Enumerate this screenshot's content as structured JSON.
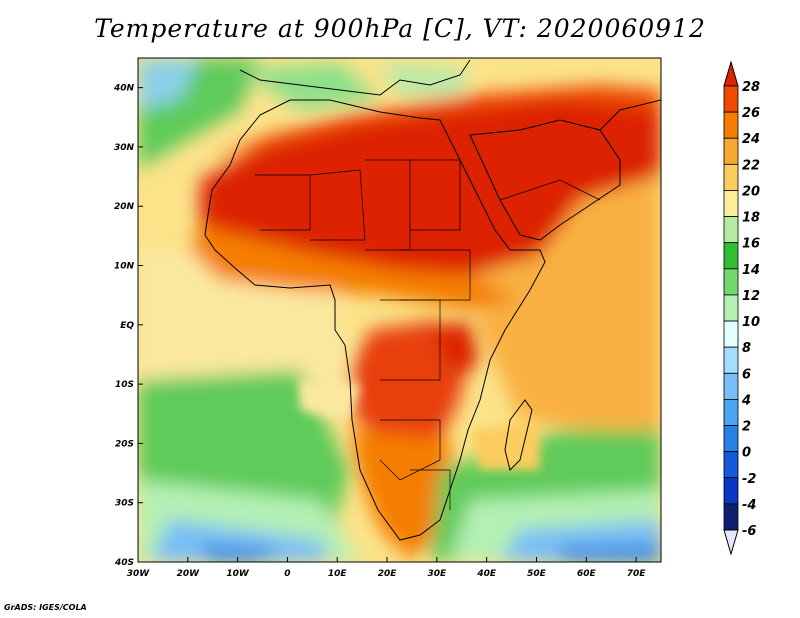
{
  "title": "Temperature at 900hPa [C], VT: 2020060912",
  "footer": "GrADS: IGES/COLA",
  "map": {
    "lon_range": [
      -30,
      75
    ],
    "lat_range": [
      -40,
      45
    ],
    "lon_ticks": [
      "30W",
      "20W",
      "10W",
      "0",
      "10E",
      "20E",
      "30E",
      "40E",
      "50E",
      "60E",
      "70E"
    ],
    "lat_ticks": [
      "40S",
      "30S",
      "20S",
      "10S",
      "EQ",
      "10N",
      "20N",
      "30N",
      "40N"
    ],
    "variable": "Temperature",
    "level": "900hPa",
    "units": "C",
    "valid_time": "2020060912"
  },
  "colorbar": {
    "labels": [
      "28",
      "26",
      "24",
      "22",
      "20",
      "18",
      "16",
      "14",
      "12",
      "10",
      "8",
      "6",
      "4",
      "2",
      "0",
      "-2",
      "-4",
      "-6"
    ],
    "colors": [
      "#dc2400",
      "#ee4a00",
      "#f57e00",
      "#f9a733",
      "#fbcd5e",
      "#fbed9a",
      "#b4eaa4",
      "#32be32",
      "#73d76e",
      "#b4f0b4",
      "#e1ffff",
      "#a5dcff",
      "#78bef5",
      "#4ba5f0",
      "#2882e6",
      "#145adc",
      "#0a37c3",
      "#0f1e6e"
    ]
  }
}
